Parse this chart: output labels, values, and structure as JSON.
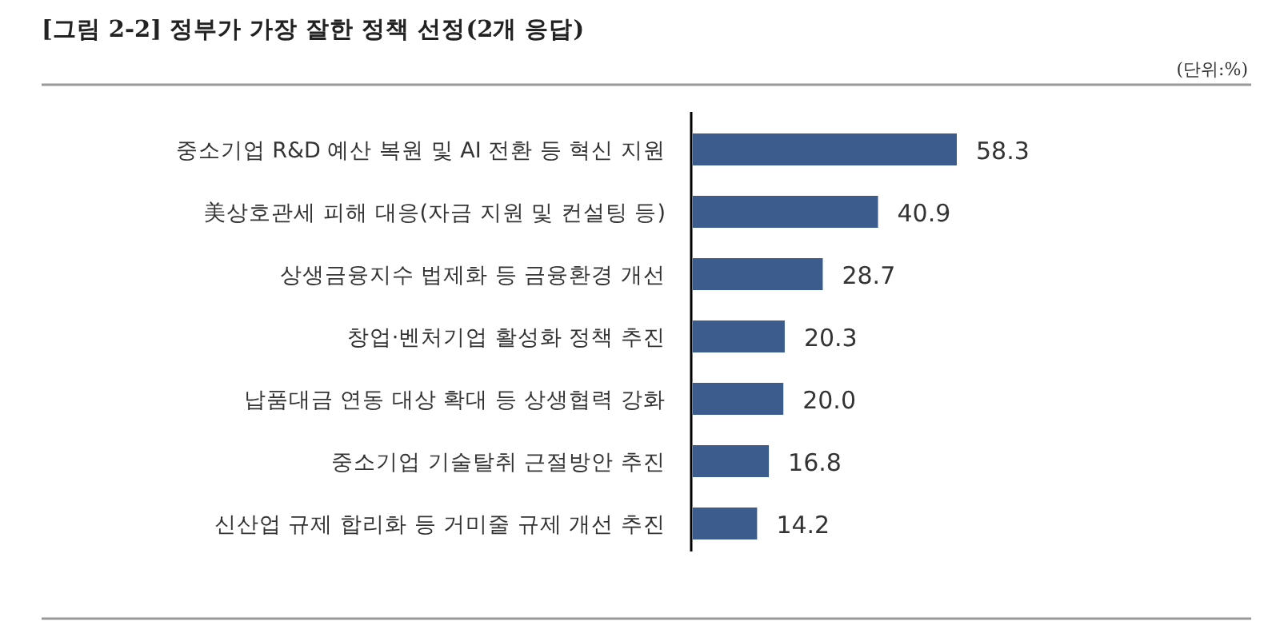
{
  "chart_data": {
    "type": "bar",
    "orientation": "horizontal",
    "title": "[그림 2-2] 정부가 가장 잘한 정책 선정(2개 응답)",
    "annotations": [
      "(단위:%)"
    ],
    "categories": [
      "중소기업 R&D 예산 복원 및 AI 전환 등 혁신 지원",
      "美상호관세 피해 대응(자금 지원 및 컨설팅 등)",
      "상생금융지수 법제화 등 금융환경 개선",
      "창업·벤처기업 활성화 정책 추진",
      "납품대금 연동 대상 확대 등 상생협력 강화",
      "중소기업 기술탈취 근절방안 추진",
      "신산업 규제 합리화 등 거미줄 규제 개선 추진"
    ],
    "values": [
      58.3,
      40.9,
      28.7,
      20.3,
      20.0,
      16.8,
      14.2
    ],
    "value_labels": [
      "58.3",
      "40.9",
      "28.7",
      "20.3",
      "20.0",
      "16.8",
      "14.2"
    ],
    "color": "#3b5c8c"
  }
}
